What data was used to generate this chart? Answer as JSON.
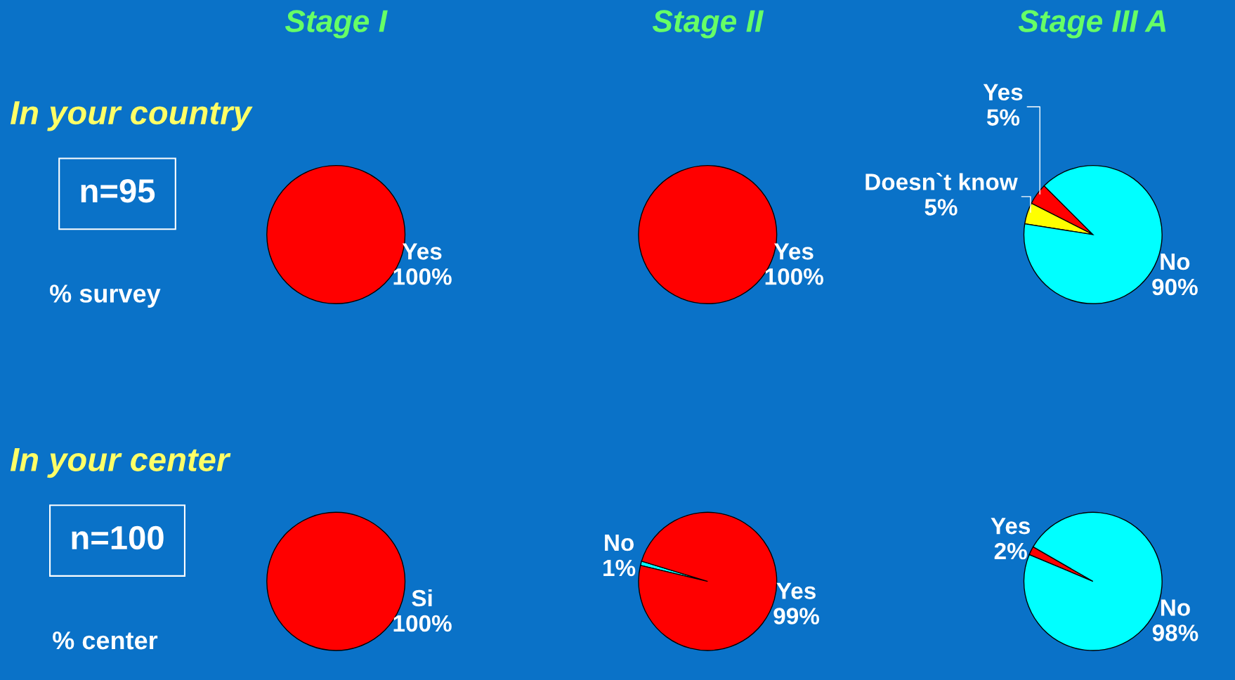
{
  "chart_data": [
    {
      "type": "pie",
      "title": "Stage I",
      "categories": [
        "Yes"
      ],
      "values": [
        100
      ],
      "colors": [
        "#ff0000"
      ],
      "value_labels": [
        "100%"
      ],
      "annotations": [
        "In your country",
        "n=95",
        "% survey"
      ]
    },
    {
      "type": "pie",
      "title": "Stage II",
      "categories": [
        "Yes"
      ],
      "values": [
        100
      ],
      "colors": [
        "#ff0000"
      ],
      "value_labels": [
        "100%"
      ]
    },
    {
      "type": "pie",
      "title": "Stage III A",
      "categories": [
        "Yes",
        "Doesn`t know",
        "No"
      ],
      "values": [
        5,
        5,
        90
      ],
      "colors": [
        "#ff0000",
        "#ffff00",
        "#00ffff"
      ],
      "value_labels": [
        "5%",
        "5%",
        "90%"
      ]
    },
    {
      "type": "pie",
      "categories": [
        "Si"
      ],
      "values": [
        100
      ],
      "colors": [
        "#ff0000"
      ],
      "value_labels": [
        "100%"
      ],
      "annotations": [
        "In your center",
        "n=100",
        "% center"
      ]
    },
    {
      "type": "pie",
      "categories": [
        "No",
        "Yes"
      ],
      "values": [
        1,
        99
      ],
      "colors": [
        "#00ffff",
        "#ff0000"
      ],
      "value_labels": [
        "1%",
        "99%"
      ]
    },
    {
      "type": "pie",
      "categories": [
        "Yes",
        "No"
      ],
      "values": [
        2,
        98
      ],
      "colors": [
        "#ff0000",
        "#00ffff"
      ],
      "value_labels": [
        "2%",
        "98%"
      ]
    }
  ]
}
